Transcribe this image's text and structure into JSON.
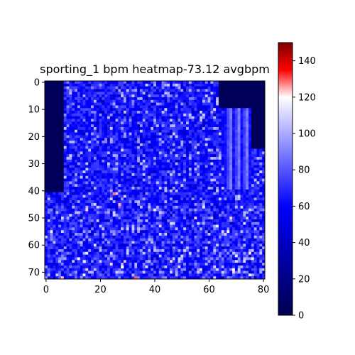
{
  "chart_data": {
    "type": "heatmap",
    "title": "sporting_1 bpm heatmap-73.12 avgbpm",
    "xlabel": "",
    "ylabel": "",
    "grid": false,
    "x_range": [
      0,
      81
    ],
    "y_range": [
      0,
      73
    ],
    "y_inverted": true,
    "x_ticks": [
      0,
      20,
      40,
      60,
      80
    ],
    "y_ticks": [
      0,
      10,
      20,
      30,
      40,
      50,
      60,
      70
    ],
    "x_tick_labels": [
      "0",
      "20",
      "40",
      "60",
      "80"
    ],
    "y_tick_labels": [
      "0",
      "10",
      "20",
      "30",
      "40",
      "50",
      "60",
      "70"
    ],
    "colorbar": {
      "range": [
        0,
        150
      ],
      "colormap": "seismic",
      "colormap_center": 120,
      "ticks": [
        0,
        20,
        40,
        60,
        80,
        100,
        120,
        140
      ],
      "tick_labels": [
        "0",
        "20",
        "40",
        "60",
        "80",
        "100",
        "120",
        "140"
      ]
    },
    "colors": {
      "low": "#00004c",
      "mid_low": "#0000ff",
      "center": "#ffffff",
      "mid_high": "#ff0000",
      "high": "#7f0000"
    },
    "values_summary": {
      "mean_bpm": 73.12,
      "background_blocks": [
        {
          "region": "left strip",
          "x": [
            0,
            7
          ],
          "y": [
            0,
            41
          ],
          "value": 5
        },
        {
          "region": "top-right corner",
          "x": [
            64,
            81
          ],
          "y": [
            0,
            10
          ],
          "value": 5
        },
        {
          "region": "right strip",
          "x": [
            76,
            81
          ],
          "y": [
            10,
            25
          ],
          "value": 5
        },
        {
          "region": "top-left corner",
          "x": [
            0,
            3
          ],
          "y": [
            0,
            3
          ],
          "value": 5
        }
      ],
      "hot_spots": [
        {
          "x": 25,
          "y": 41,
          "value": 128
        },
        {
          "x": 27,
          "y": 45,
          "value": 125
        },
        {
          "x": 33,
          "y": 72,
          "value": 130
        },
        {
          "x": 28,
          "y": 68,
          "value": 118
        },
        {
          "x": 14,
          "y": 66,
          "value": 116
        }
      ]
    }
  }
}
